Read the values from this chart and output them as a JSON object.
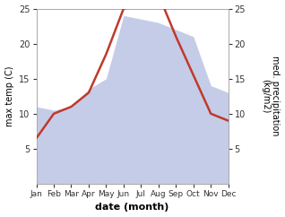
{
  "months": [
    "Jan",
    "Feb",
    "Mar",
    "Apr",
    "May",
    "Jun",
    "Jul",
    "Aug",
    "Sep",
    "Oct",
    "Nov",
    "Dec"
  ],
  "month_x": [
    1,
    2,
    3,
    4,
    5,
    6,
    7,
    8,
    9,
    10,
    11,
    12
  ],
  "temp": [
    6.5,
    10.0,
    11.0,
    13.0,
    18.5,
    25.0,
    25.5,
    27.0,
    21.0,
    15.5,
    10.0,
    9.0
  ],
  "precip": [
    11.0,
    10.5,
    11.0,
    13.5,
    15.0,
    24.0,
    23.5,
    23.0,
    22.0,
    21.0,
    14.0,
    13.0
  ],
  "temp_color": "#c0392b",
  "precip_fill_color": "#c5cce8",
  "precip_edge_color": "#c5cce8",
  "left_ylabel": "max temp (C)",
  "right_ylabel": "med. precipitation\n(kg/m2)",
  "xlabel": "date (month)",
  "ylim_left": [
    0,
    25
  ],
  "ylim_right": [
    0,
    25
  ],
  "yticks": [
    5,
    10,
    15,
    20,
    25
  ],
  "background_color": "#ffffff"
}
